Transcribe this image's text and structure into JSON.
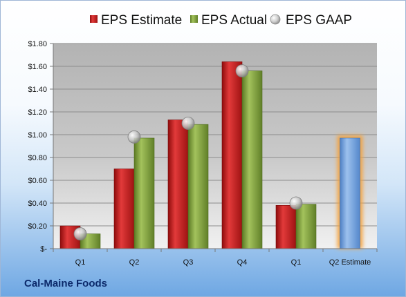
{
  "chart_data": {
    "type": "bar",
    "categories": [
      "Q1",
      "Q2",
      "Q3",
      "Q4",
      "Q1",
      "Q2 Estimate"
    ],
    "series": [
      {
        "name": "EPS Estimate",
        "color": "#c01a1a",
        "values": [
          0.2,
          0.7,
          1.13,
          1.64,
          0.38,
          null
        ]
      },
      {
        "name": "EPS Actual",
        "color": "#7e9f3c",
        "values": [
          0.13,
          0.97,
          1.09,
          1.56,
          0.39,
          null
        ]
      },
      {
        "name": "EPS GAAP",
        "color": "#b4b4b4",
        "marker": "circle",
        "values": [
          0.13,
          0.98,
          1.1,
          1.56,
          0.4,
          null
        ]
      }
    ],
    "estimate_bar": {
      "category_index": 5,
      "value": 0.97,
      "color": "#6b9bd8",
      "glow": "#f5a23a"
    },
    "ylim": [
      0,
      1.8
    ],
    "yticks": [
      0,
      0.2,
      0.4,
      0.6,
      0.8,
      1.0,
      1.2,
      1.4,
      1.6,
      1.8
    ],
    "ytick_labels": [
      "$-",
      "$0.20",
      "$0.40",
      "$0.60",
      "$0.80",
      "$1.00",
      "$1.20",
      "$1.40",
      "$1.60",
      "$1.80"
    ],
    "legend_position": "top",
    "grid": true,
    "xlabel": "",
    "ylabel": ""
  },
  "footer": {
    "company": "Cal-Maine Foods"
  }
}
